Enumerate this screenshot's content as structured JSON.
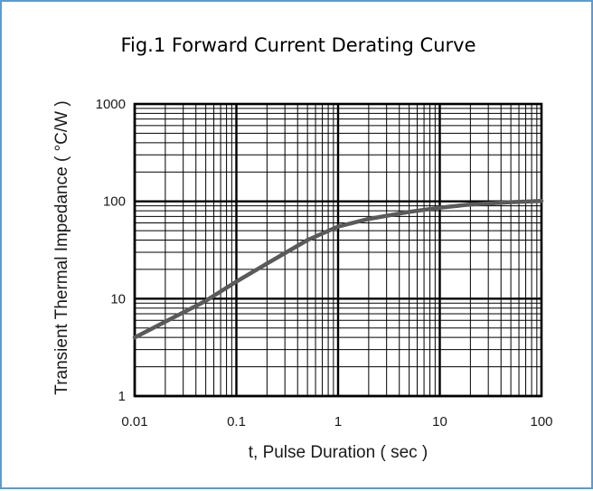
{
  "chart_data": {
    "type": "line",
    "title": "Fig.1 Forward Current Derating Curve",
    "xlabel": "t, Pulse Duration ( sec )",
    "ylabel": "Transient Thermal Impedance ( °C/W )",
    "xscale": "log",
    "yscale": "log",
    "xlim": [
      0.01,
      100
    ],
    "ylim": [
      1,
      1000
    ],
    "grid": true,
    "legend": "none",
    "x_ticks": [
      "0.01",
      "0.1",
      "1",
      "10",
      "100"
    ],
    "y_ticks": [
      "1",
      "10",
      "100",
      "1000"
    ],
    "series": [
      {
        "color": "#5a5a5a",
        "points": [
          {
            "x": 0.01,
            "y": 4
          },
          {
            "x": 0.02,
            "y": 5.8
          },
          {
            "x": 0.05,
            "y": 9.5
          },
          {
            "x": 0.1,
            "y": 15
          },
          {
            "x": 0.2,
            "y": 23
          },
          {
            "x": 0.5,
            "y": 40
          },
          {
            "x": 1,
            "y": 55
          },
          {
            "x": 2,
            "y": 66
          },
          {
            "x": 5,
            "y": 78
          },
          {
            "x": 10,
            "y": 86
          },
          {
            "x": 20,
            "y": 93
          },
          {
            "x": 50,
            "y": 98
          },
          {
            "x": 100,
            "y": 101
          }
        ]
      }
    ]
  },
  "colors": {
    "frame_border": "#5b9bd5",
    "grid": "#000000",
    "curve": "#5a5a5a"
  }
}
